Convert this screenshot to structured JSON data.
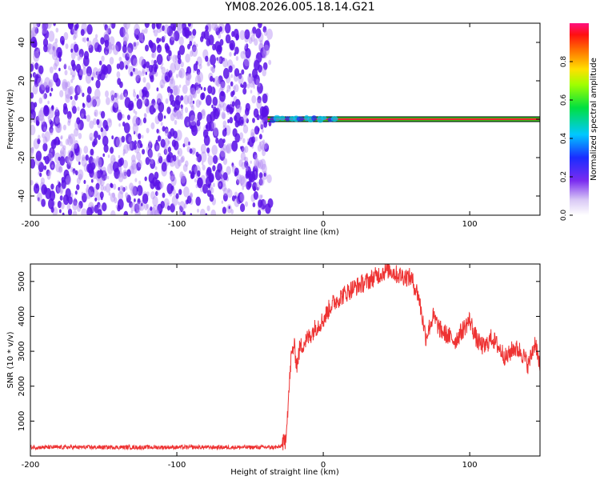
{
  "title": "YM08.2026.005.18.14.G21",
  "colors": {
    "snr_line": "#ee3333",
    "purple_dark": "#5a12e6",
    "purple_light": "#b48cf5",
    "band_red": "#e8242a",
    "band_green": "#22dd22"
  },
  "chart_data": [
    {
      "type": "heatmap",
      "xlabel": "Height of straight line (km)",
      "ylabel": "Frequency (Hz)",
      "xlim": [
        -200,
        148
      ],
      "ylim": [
        -50,
        50
      ],
      "x_ticks": [
        -200,
        -100,
        0,
        100
      ],
      "y_ticks": [
        -40,
        -20,
        0,
        20,
        40
      ],
      "noise_region_x": [
        -200,
        -36
      ],
      "signal_band": {
        "x_start": -38,
        "x_end": 148,
        "frequency_hz": 0
      },
      "colorbar": {
        "label": "Normalized spectral amplitude",
        "range": [
          0,
          1
        ],
        "ticks": [
          "0.0",
          "0.2",
          "0.4",
          "0.6",
          "0.8"
        ],
        "colormap": "rainbow"
      },
      "grid": false
    },
    {
      "type": "line",
      "xlabel": "Height of straight line (km)",
      "ylabel": "SNR (10 * v/v)",
      "xlim": [
        -200,
        148
      ],
      "ylim": [
        0,
        5500
      ],
      "x_ticks": [
        -200,
        -100,
        0,
        100
      ],
      "y_ticks": [
        1000,
        2000,
        3000,
        4000,
        5000
      ],
      "series": [
        {
          "x": [
            -200,
            -180,
            -160,
            -140,
            -120,
            -100,
            -80,
            -60,
            -40,
            -30,
            -26,
            -24,
            -22,
            -20,
            -18,
            -16,
            -14,
            -12,
            -10,
            -5,
            0,
            5,
            10,
            20,
            30,
            40,
            45,
            50,
            60,
            65,
            70,
            75,
            80,
            90,
            100,
            105,
            110,
            115,
            120,
            125,
            130,
            135,
            140,
            145,
            148
          ],
          "y": [
            250,
            250,
            250,
            250,
            250,
            250,
            250,
            250,
            250,
            250,
            400,
            1500,
            2800,
            3200,
            2600,
            3100,
            3200,
            3300,
            3400,
            3700,
            3900,
            4300,
            4500,
            4800,
            5000,
            5250,
            5350,
            5200,
            5100,
            4600,
            3400,
            4000,
            3600,
            3300,
            3900,
            3300,
            3100,
            3400,
            3100,
            2800,
            3100,
            3000,
            2600,
            3300,
            2400
          ]
        }
      ],
      "grid": false
    }
  ]
}
